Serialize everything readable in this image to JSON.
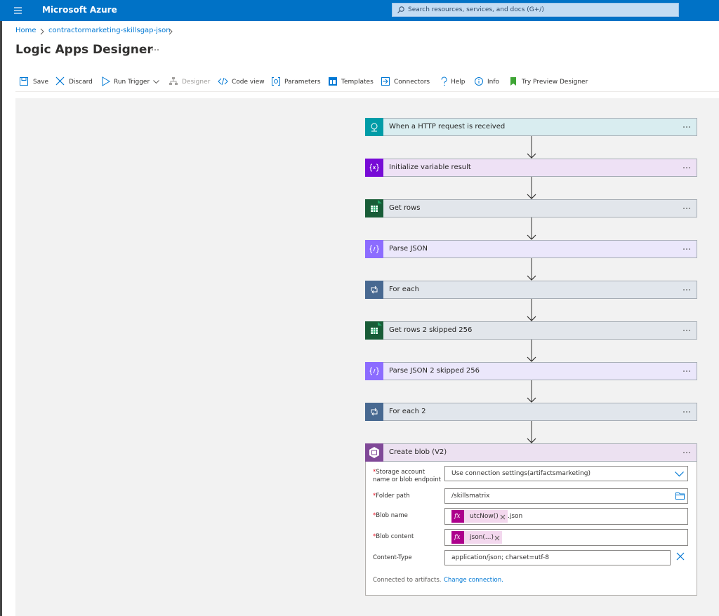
{
  "top_bar": {
    "brand": "Microsoft Azure",
    "search_placeholder": "Search resources, services, and docs (G+/)"
  },
  "breadcrumb": [
    "Home",
    "contractormarketing-skillsgap-json"
  ],
  "page_title": "Logic Apps Designer",
  "toolbar": [
    {
      "label": "Save"
    },
    {
      "label": "Discard"
    },
    {
      "label": "Run Trigger"
    },
    {
      "label": "Designer",
      "disabled": true
    },
    {
      "label": "Code view"
    },
    {
      "label": "Parameters"
    },
    {
      "label": "Templates"
    },
    {
      "label": "Connectors"
    },
    {
      "label": "Help"
    },
    {
      "label": "Info"
    },
    {
      "label": "Try Preview Designer"
    }
  ],
  "steps": [
    {
      "title": "When a HTTP request is received",
      "kind": "http"
    },
    {
      "title": "Initialize variable result",
      "kind": "variable"
    },
    {
      "title": "Get rows",
      "kind": "excel"
    },
    {
      "title": "Parse JSON",
      "kind": "json"
    },
    {
      "title": "For each",
      "kind": "loop"
    },
    {
      "title": "Get rows 2 skipped 256",
      "kind": "excel"
    },
    {
      "title": "Parse JSON 2 skipped 256",
      "kind": "json"
    },
    {
      "title": "For each 2",
      "kind": "loop"
    },
    {
      "title": "Create blob (V2)",
      "kind": "blob"
    }
  ],
  "expanded_step": {
    "fields": [
      {
        "mark": "*",
        "label": "Storage account name or blob endpoint",
        "value": "Use connection settings(artifactsmarketing)",
        "control": "dropdown"
      },
      {
        "mark": "*",
        "label": "Folder path",
        "value": "/skillsmatrix",
        "control": "folder"
      },
      {
        "mark": "*",
        "label": "Blob name",
        "tokens": [
          {
            "icon": "fx",
            "text": "utcNow()"
          }
        ],
        "suffix": ".json",
        "control": "token"
      },
      {
        "mark": "*",
        "label": "Blob content",
        "tokens": [
          {
            "icon": "fx",
            "text": "json(...)"
          }
        ],
        "control": "token"
      },
      {
        "label": "Content-Type",
        "value": "application/json; charset=utf-8",
        "control": "removable"
      }
    ],
    "footer_text": "Connected to artifacts.",
    "footer_link": "Change connection."
  }
}
